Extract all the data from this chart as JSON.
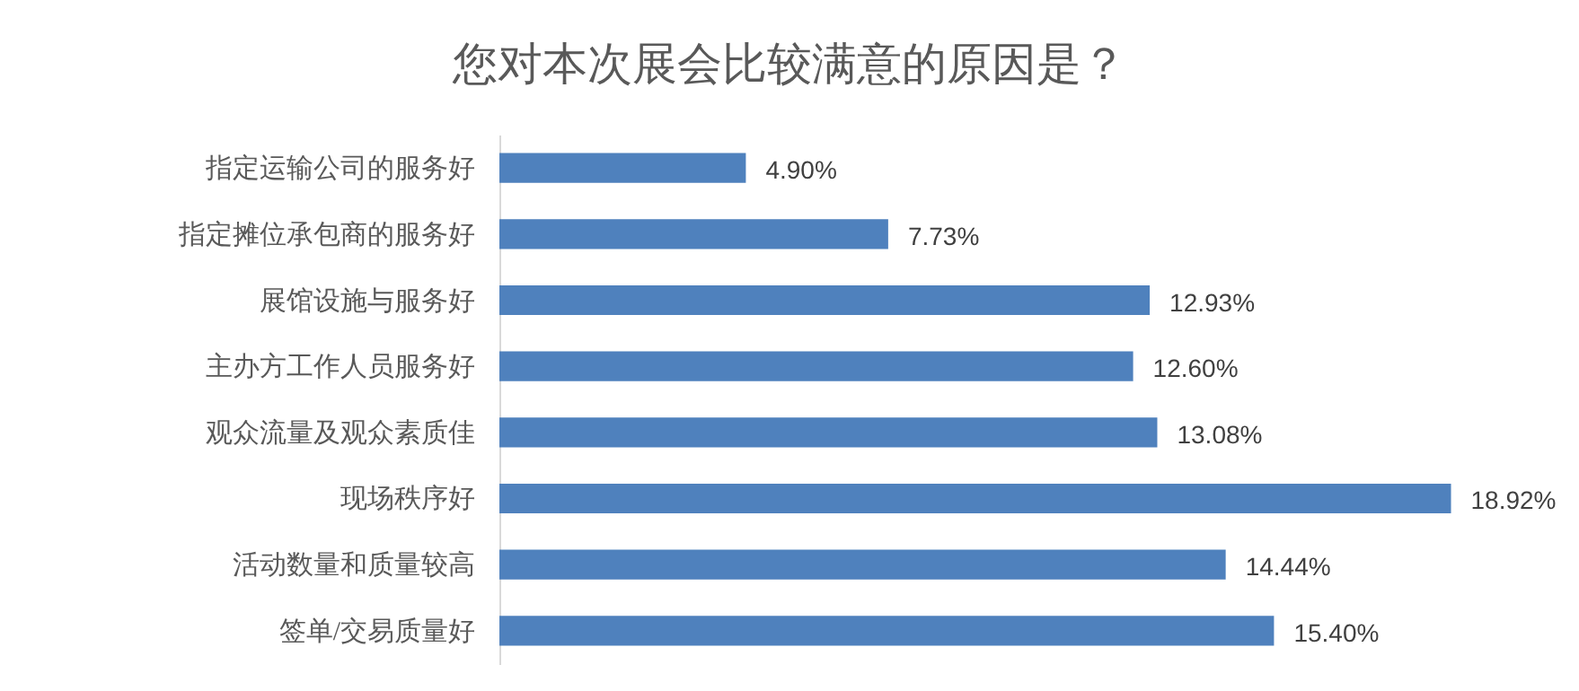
{
  "chart_data": {
    "type": "bar",
    "orientation": "horizontal",
    "title": "您对本次展会比较满意的原因是？",
    "categories": [
      "指定运输公司的服务好",
      "指定摊位承包商的服务好",
      "展馆设施与服务好",
      "主办方工作人员服务好",
      "观众流量及观众素质佳",
      "现场秩序好",
      "活动数量和质量较高",
      "签单/交易质量好"
    ],
    "values": [
      4.9,
      7.73,
      12.93,
      12.6,
      13.08,
      18.92,
      14.44,
      15.4
    ],
    "value_labels": [
      "4.90%",
      "7.73%",
      "12.93%",
      "12.60%",
      "13.08%",
      "18.92%",
      "14.44%",
      "15.40%"
    ],
    "color": "#4f81bd"
  }
}
